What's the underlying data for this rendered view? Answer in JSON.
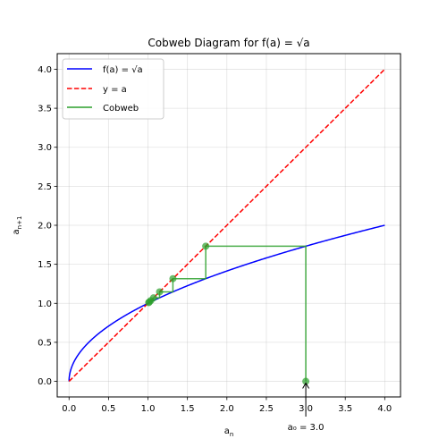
{
  "chart_data": {
    "type": "line",
    "title": "Cobweb Diagram for f(a) = √a",
    "xlabel_main": "a",
    "xlabel_sub": "n",
    "ylabel_main": "a",
    "ylabel_sub": "n+1",
    "xlim": [
      -0.15,
      4.2
    ],
    "ylim": [
      -0.2,
      4.2
    ],
    "xticks": [
      0.0,
      0.5,
      1.0,
      1.5,
      2.0,
      2.5,
      3.0,
      3.5,
      4.0
    ],
    "xtick_labels": [
      "0.0",
      "0.5",
      "1.0",
      "1.5",
      "2.0",
      "2.5",
      "3.0",
      "3.5",
      "4.0"
    ],
    "yticks": [
      0.0,
      0.5,
      1.0,
      1.5,
      2.0,
      2.5,
      3.0,
      3.5,
      4.0
    ],
    "ytick_labels": [
      "0.0",
      "0.5",
      "1.0",
      "1.5",
      "2.0",
      "2.5",
      "3.0",
      "3.5",
      "4.0"
    ],
    "grid": true,
    "legend_position": "top-left",
    "series": [
      {
        "name": "f(a) = √a",
        "style": "solid",
        "color": "#0000ff",
        "function": "sqrt",
        "x_range": [
          0,
          4
        ]
      },
      {
        "name": "y = a",
        "style": "dashed",
        "color": "#ff0000",
        "x": [
          0,
          4
        ],
        "y": [
          0,
          4
        ]
      },
      {
        "name": "Cobweb",
        "style": "solid",
        "color": "#2ca02c",
        "x": [
          3.0,
          3.0,
          1.732,
          1.732,
          1.316,
          1.316,
          1.147,
          1.147,
          1.071,
          1.071,
          1.035,
          1.035,
          1.017,
          1.017,
          1.009
        ],
        "y": [
          0.0,
          1.732,
          1.732,
          1.316,
          1.316,
          1.147,
          1.147,
          1.071,
          1.071,
          1.035,
          1.035,
          1.017,
          1.017,
          1.009,
          1.009
        ]
      }
    ],
    "points": {
      "x": [
        3.0,
        1.732,
        1.316,
        1.147,
        1.071,
        1.035,
        1.017,
        1.009
      ],
      "y": [
        0.0,
        1.732,
        1.316,
        1.147,
        1.071,
        1.035,
        1.017,
        1.009
      ],
      "color": "#2ca02c"
    },
    "annotation": {
      "text": "a₀ = 3.0",
      "x": 3.0,
      "y": 0.0
    }
  }
}
